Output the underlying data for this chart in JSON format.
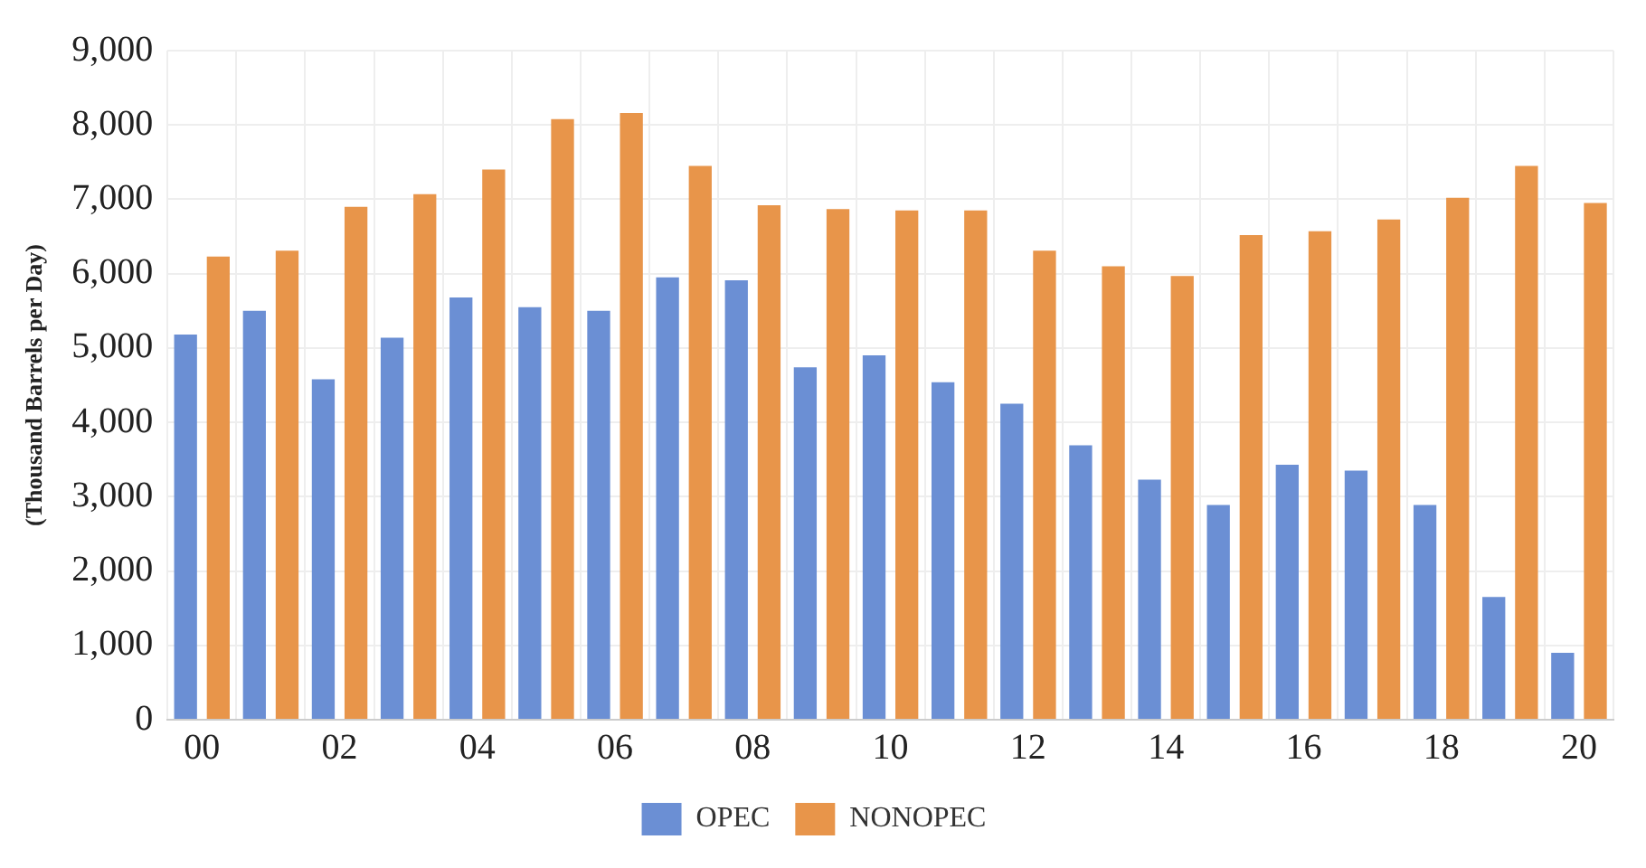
{
  "chart_data": {
    "type": "bar",
    "ylabel": "(Thousand Barrels per Day)",
    "categories": [
      "00",
      null,
      "02",
      null,
      "04",
      null,
      "06",
      null,
      "08",
      null,
      "10",
      null,
      "12",
      null,
      "14",
      null,
      "16",
      null,
      "18",
      null,
      "20"
    ],
    "series": [
      {
        "name": "OPEC",
        "color": "#6b8fd4",
        "values": [
          5180,
          5500,
          4580,
          5140,
          5680,
          5550,
          5500,
          5950,
          5910,
          4740,
          4900,
          4540,
          4250,
          3690,
          3230,
          2890,
          3430,
          3350,
          2890,
          1650,
          900
        ]
      },
      {
        "name": "NONOPEC",
        "color": "#e8954a",
        "values": [
          6230,
          6310,
          6900,
          7070,
          7400,
          8080,
          8160,
          7450,
          6920,
          6870,
          6850,
          6850,
          6310,
          6100,
          5970,
          6520,
          6570,
          6730,
          7020,
          7450,
          6950
        ]
      }
    ],
    "ylim": [
      0,
      9000
    ],
    "yticks": [
      {
        "value": 0,
        "label": "0"
      },
      {
        "value": 1000,
        "label": "1,000"
      },
      {
        "value": 2000,
        "label": "2,000"
      },
      {
        "value": 3000,
        "label": "3,000"
      },
      {
        "value": 4000,
        "label": "4,000"
      },
      {
        "value": 5000,
        "label": "5,000"
      },
      {
        "value": 6000,
        "label": "6,000"
      },
      {
        "value": 7000,
        "label": "7,000"
      },
      {
        "value": 8000,
        "label": "8,000"
      },
      {
        "value": 9000,
        "label": "9,000"
      }
    ],
    "grid": true,
    "legend": "bottom"
  }
}
